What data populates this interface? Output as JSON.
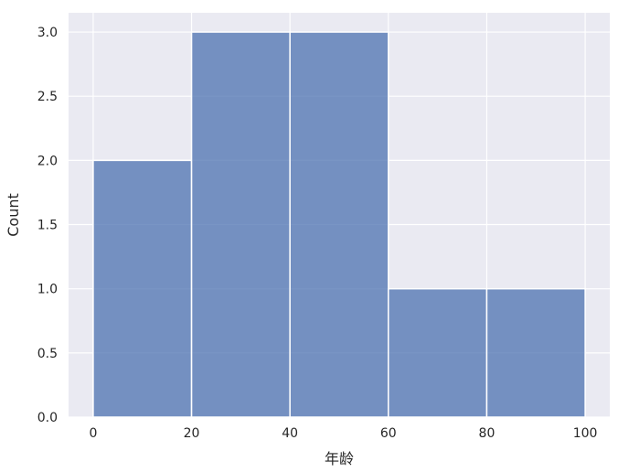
{
  "chart_data": {
    "type": "histogram",
    "title": "",
    "xlabel": "年龄",
    "ylabel": "Count",
    "bins": [
      {
        "start": 0,
        "end": 20,
        "count": 2
      },
      {
        "start": 20,
        "end": 40,
        "count": 3
      },
      {
        "start": 40,
        "end": 60,
        "count": 3
      },
      {
        "start": 60,
        "end": 80,
        "count": 1
      },
      {
        "start": 80,
        "end": 100,
        "count": 1
      }
    ],
    "xlim": [
      -5,
      105
    ],
    "ylim": [
      0,
      3.15
    ],
    "xticks": [
      "0",
      "20",
      "40",
      "60",
      "80",
      "100"
    ],
    "yticks": [
      "0.0",
      "0.5",
      "1.0",
      "1.5",
      "2.0",
      "2.5",
      "3.0"
    ],
    "grid": true,
    "colors": {
      "bar": "#4c72b0",
      "background": "#eaeaf2",
      "grid": "#ffffff"
    }
  }
}
